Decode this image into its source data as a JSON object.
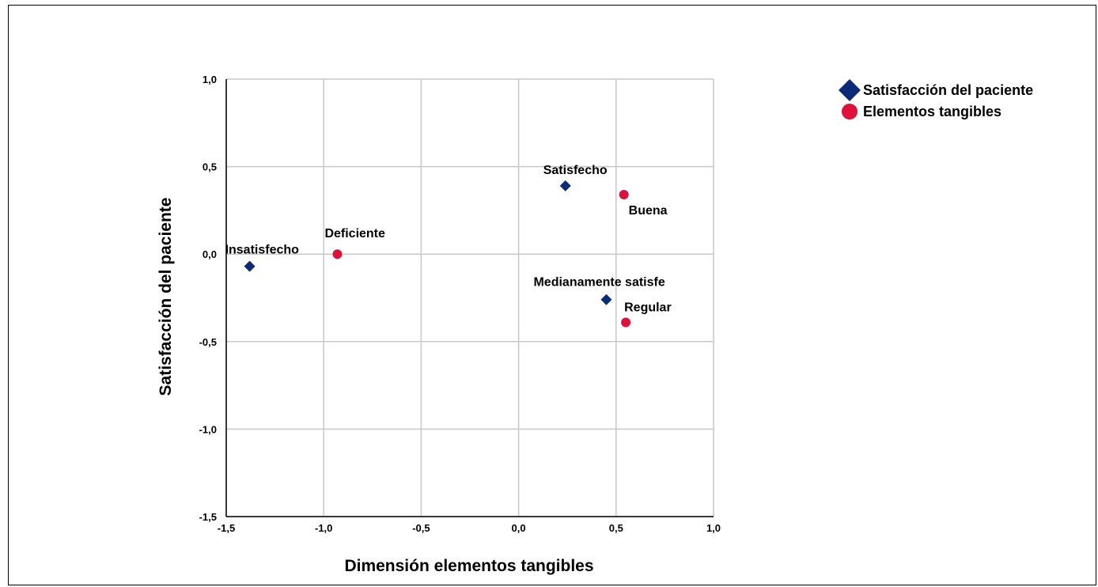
{
  "chart_data": {
    "type": "scatter",
    "xlabel": "Dimensión elementos tangibles",
    "ylabel": "Satisfacción del paciente",
    "xlim": [
      -1.5,
      1.0
    ],
    "ylim": [
      -1.5,
      1.0
    ],
    "x_ticks": [
      "-1,5",
      "-1,0",
      "-0,5",
      "0,0",
      "0,5",
      "1,0"
    ],
    "y_ticks": [
      "-1,5",
      "-1,0",
      "-0,5",
      "0,0",
      "0,5",
      "1,0"
    ],
    "grid": true,
    "legend_position": "top-right",
    "series": [
      {
        "name": "Satisfacción del paciente",
        "marker": "diamond",
        "color": "#0c2a78",
        "points": [
          {
            "label": "Insatisfecho",
            "x": -1.38,
            "y": -0.07
          },
          {
            "label": "Satisfecho",
            "x": 0.24,
            "y": 0.39
          },
          {
            "label": "Medianamente satisfe",
            "x": 0.45,
            "y": -0.26
          }
        ]
      },
      {
        "name": "Elementos tangibles",
        "marker": "circle",
        "color": "#e0103c",
        "points": [
          {
            "label": "Deficiente",
            "x": -0.93,
            "y": 0.0
          },
          {
            "label": "Buena",
            "x": 0.54,
            "y": 0.34
          },
          {
            "label": "Regular",
            "x": 0.55,
            "y": -0.39
          }
        ]
      }
    ]
  }
}
